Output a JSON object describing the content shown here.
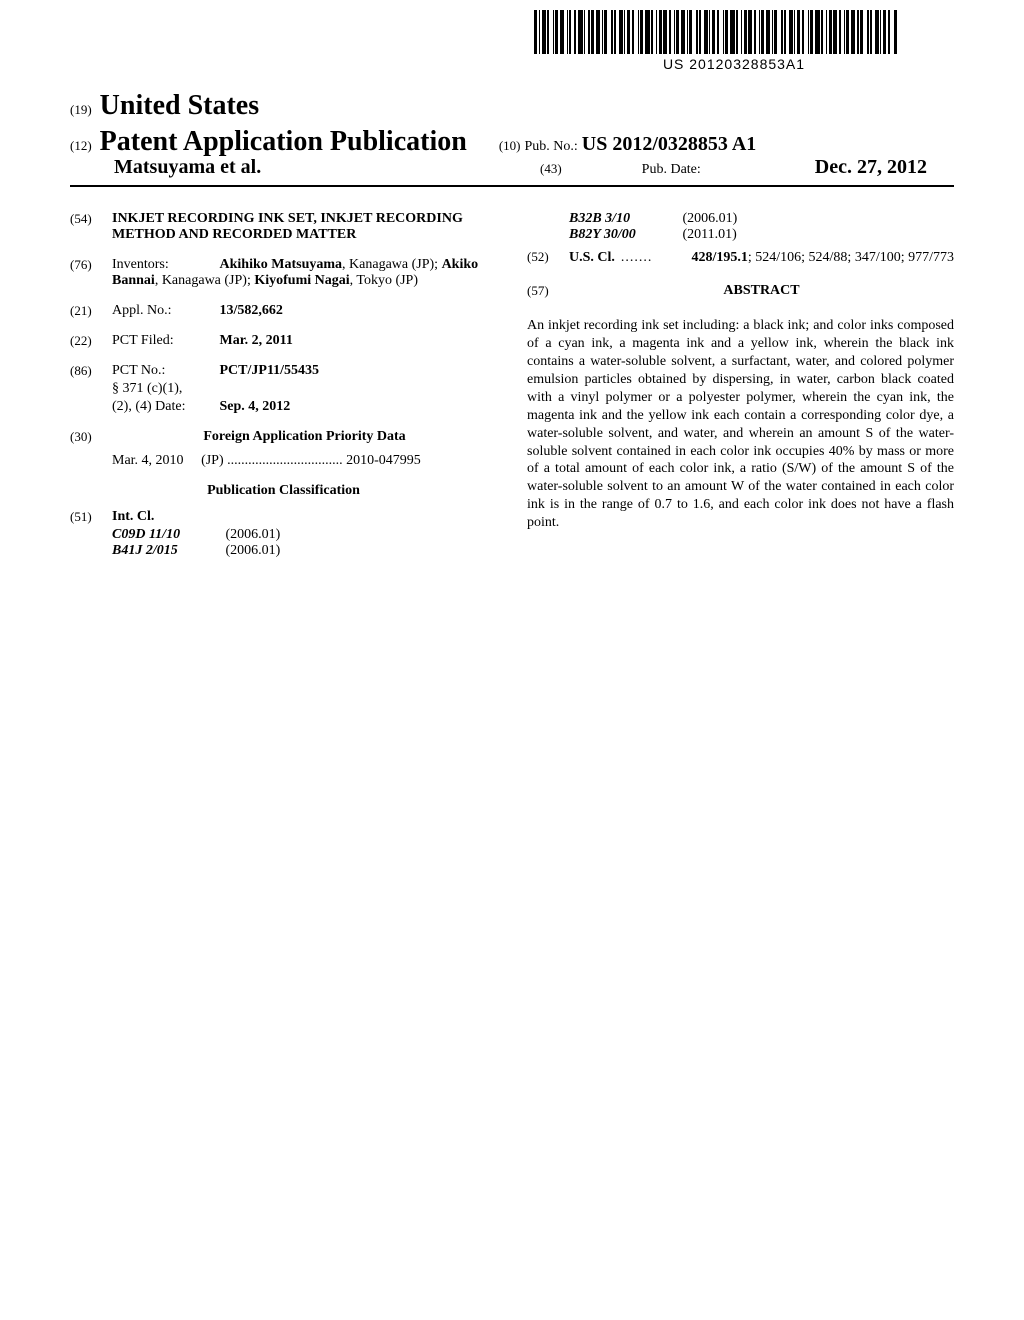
{
  "barcode_label": "US 20120328853A1",
  "header": {
    "f19_code": "(19)",
    "country": "United States",
    "f12_code": "(12)",
    "pub_title": "Patent Application Publication",
    "f10_code": "(10)",
    "pub_no_label": "Pub. No.:",
    "pub_no": "US 2012/0328853 A1",
    "authors": "Matsuyama et al.",
    "f43_code": "(43)",
    "pub_date_label": "Pub. Date:",
    "pub_date": "Dec. 27, 2012"
  },
  "left": {
    "f54_code": "(54)",
    "title": "INKJET RECORDING INK SET, INKJET RECORDING METHOD AND RECORDED MATTER",
    "f76_code": "(76)",
    "inventors_label": "Inventors:",
    "inventors": "Akihiko Matsuyama, Kanagawa (JP); Akiko Bannai, Kanagawa (JP); Kiyofumi Nagai, Tokyo (JP)",
    "f21_code": "(21)",
    "appl_label": "Appl. No.:",
    "appl_no": "13/582,662",
    "f22_code": "(22)",
    "pct_filed_label": "PCT Filed:",
    "pct_filed": "Mar. 2, 2011",
    "f86_code": "(86)",
    "pct_no_label": "PCT No.:",
    "pct_no": "PCT/JP11/55435",
    "s371_label": "§ 371 (c)(1),",
    "s371_date_label": "(2), (4) Date:",
    "s371_date": "Sep. 4, 2012",
    "f30_code": "(30)",
    "priority_heading": "Foreign Application Priority Data",
    "prio_date": "Mar. 4, 2010",
    "prio_country": "(JP)",
    "prio_dots": ".................................",
    "prio_num": "2010-047995",
    "pubclass_heading": "Publication Classification",
    "f51_code": "(51)",
    "intcl_label": "Int. Cl.",
    "intcl": [
      {
        "code": "C09D 11/10",
        "year": "(2006.01)"
      },
      {
        "code": "B41J 2/015",
        "year": "(2006.01)"
      }
    ]
  },
  "right": {
    "intcl_cont": [
      {
        "code": "B32B 3/10",
        "year": "(2006.01)"
      },
      {
        "code": "B82Y 30/00",
        "year": "(2011.01)"
      }
    ],
    "f52_code": "(52)",
    "uscl_label": "U.S. Cl.",
    "uscl_dots": ".......",
    "uscl_main": "428/195.1",
    "uscl_rest": "; 524/106; 524/88; 347/100; 977/773",
    "f57_code": "(57)",
    "abstract_label": "ABSTRACT",
    "abstract": "An inkjet recording ink set including: a black ink; and color inks composed of a cyan ink, a magenta ink and a yellow ink, wherein the black ink contains a water-soluble solvent, a surfactant, water, and colored polymer emulsion particles obtained by dispersing, in water, carbon black coated with a vinyl polymer or a polyester polymer, wherein the cyan ink, the magenta ink and the yellow ink each contain a corresponding color dye, a water-soluble solvent, and water, and wherein an amount S of the water-soluble solvent contained in each color ink occupies 40% by mass or more of a total amount of each color ink, a ratio (S/W) of the amount S of the water-soluble solvent to an amount W of the water contained in each color ink is in the range of 0.7 to 1.6, and each color ink does not have a flash point."
  }
}
